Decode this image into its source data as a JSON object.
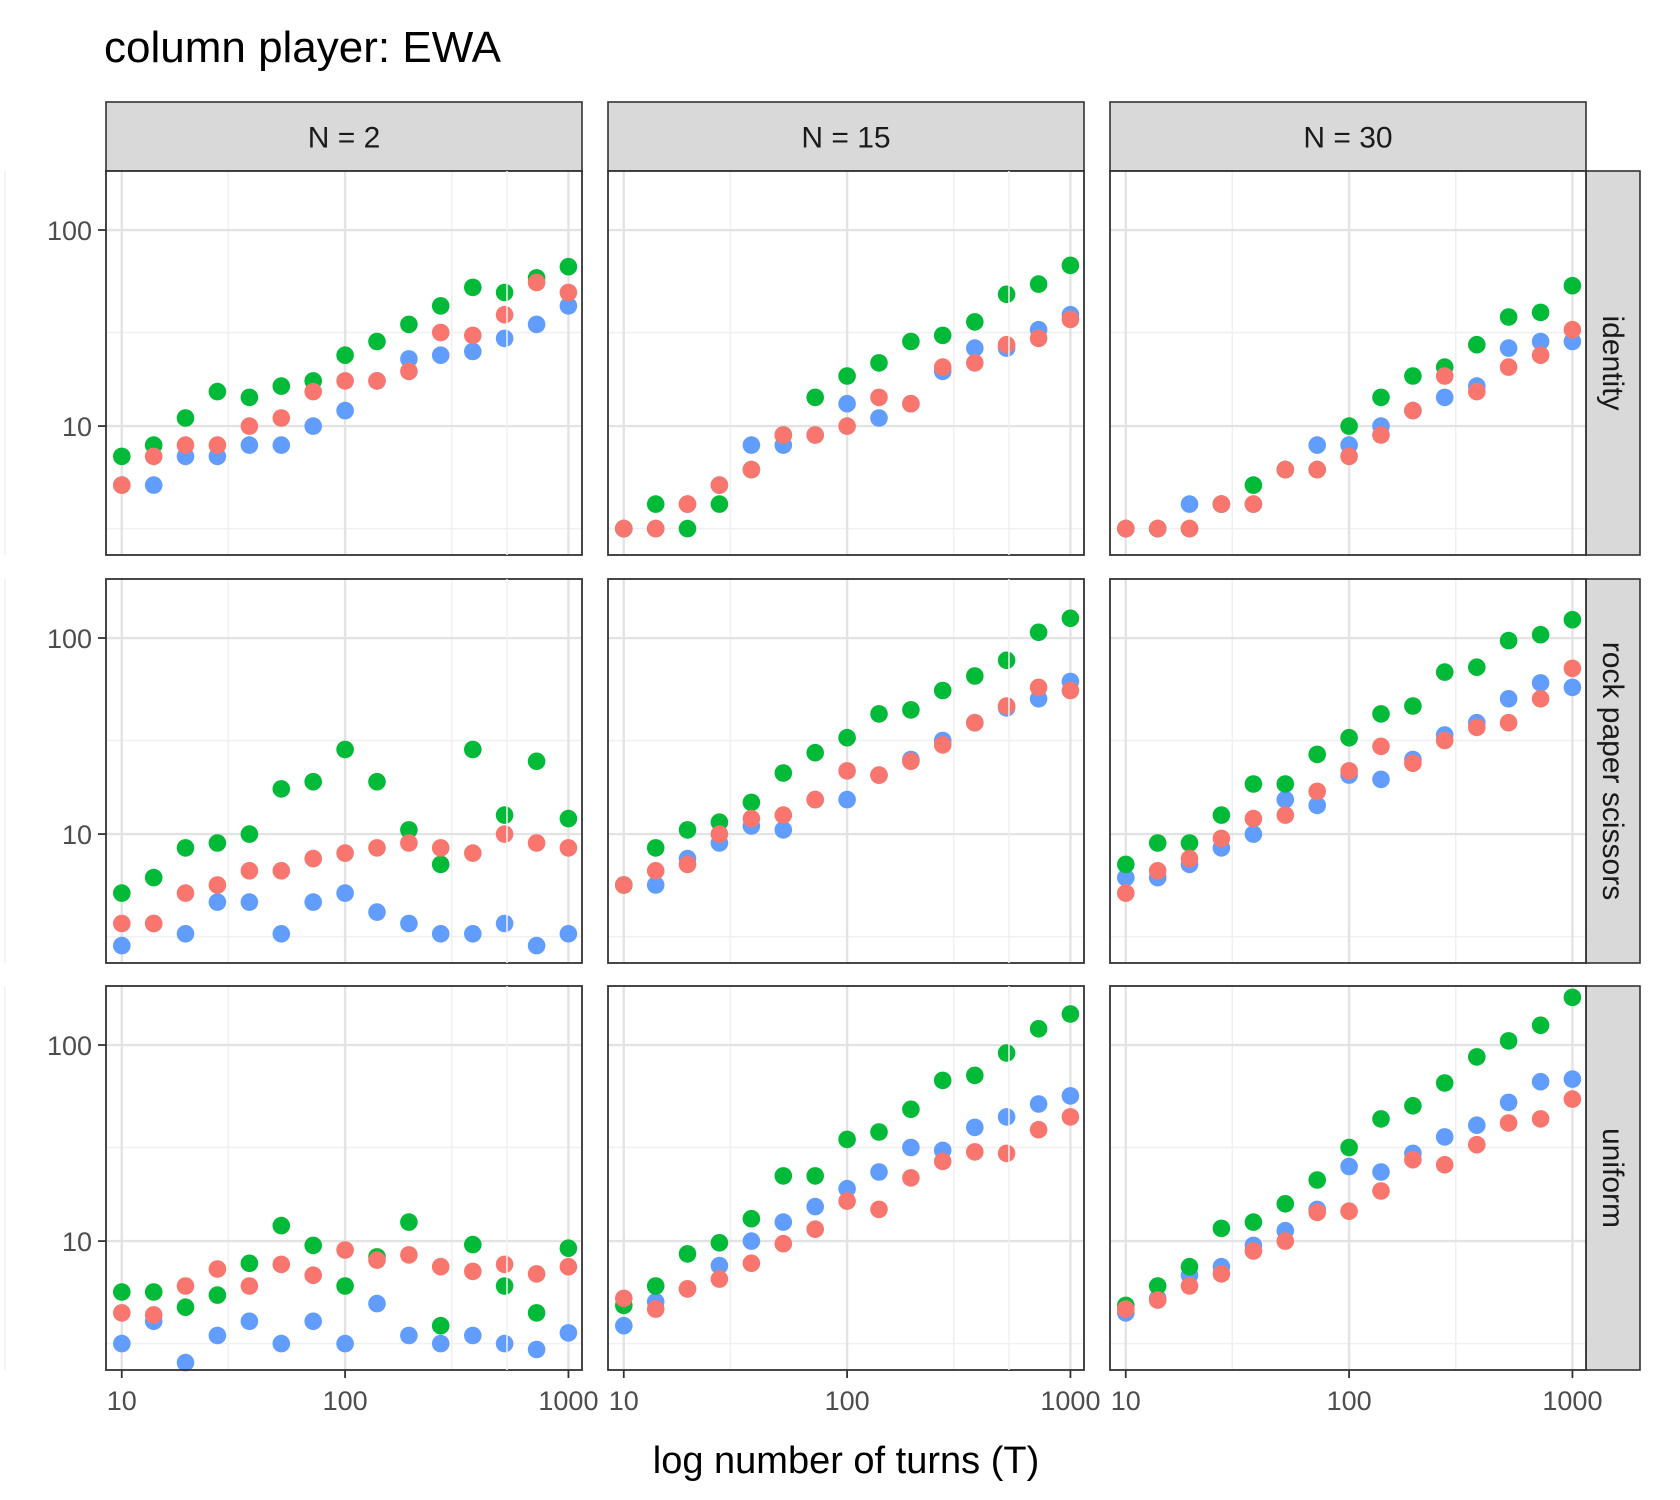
{
  "title": "column player: EWA",
  "chart_data": {
    "type": "scatter",
    "title": "column player: EWA",
    "xlabel": "log number of turns (T)",
    "ylabel": "",
    "x_scale": "log10",
    "y_scale": "log10",
    "xlim": [
      8.5,
      1150
    ],
    "ylim": [
      2.2,
      200
    ],
    "x_ticks": [
      10,
      100,
      1000
    ],
    "x_tick_labels": [
      "10",
      "100",
      "1000"
    ],
    "y_ticks": [
      10,
      100
    ],
    "y_tick_labels": [
      "10",
      "100"
    ],
    "grid": true,
    "legend": "none",
    "columns": [
      "N = 2",
      "N = 15",
      "N = 30"
    ],
    "rows": [
      "identity",
      "rock paper scissors",
      "uniform"
    ],
    "series_colors": {
      "blue": "#619CFF",
      "green": "#00BA38",
      "red": "#F8766D"
    },
    "x": [
      10,
      13.9,
      19.3,
      26.8,
      37.3,
      51.8,
      72,
      100,
      139,
      193,
      268,
      373,
      518,
      720,
      1000
    ],
    "panels": [
      {
        "row": "identity",
        "column": "N = 2",
        "series": [
          {
            "color": "blue",
            "values": [
              5,
              5,
              7,
              7,
              8,
              8,
              10,
              12,
              17,
              22,
              23,
              24,
              28,
              33,
              41
            ]
          },
          {
            "color": "green",
            "values": [
              7,
              8,
              11,
              15,
              14,
              16,
              17,
              23,
              27,
              33,
              41,
              51,
              48,
              57,
              65
            ]
          },
          {
            "color": "red",
            "values": [
              5,
              7,
              8,
              8,
              10,
              11,
              15,
              17,
              17,
              19,
              30,
              29,
              37,
              54,
              48
            ]
          }
        ]
      },
      {
        "row": "identity",
        "column": "N = 15",
        "series": [
          {
            "color": "blue",
            "values": [
              3,
              3,
              4,
              5,
              8,
              8,
              9,
              13,
              11,
              13,
              19,
              25,
              25,
              31,
              37
            ]
          },
          {
            "color": "green",
            "values": [
              3,
              4,
              3,
              4,
              6,
              9,
              14,
              18,
              21,
              27,
              29,
              34,
              47,
              53,
              66
            ]
          },
          {
            "color": "red",
            "values": [
              3,
              3,
              4,
              5,
              6,
              9,
              9,
              10,
              14,
              13,
              20,
              21,
              26,
              28,
              35
            ]
          }
        ]
      },
      {
        "row": "identity",
        "column": "N = 30",
        "series": [
          {
            "color": "blue",
            "values": [
              3,
              3,
              4,
              4,
              4,
              6,
              8,
              8,
              10,
              12,
              14,
              16,
              25,
              27,
              27
            ]
          },
          {
            "color": "green",
            "values": [
              3,
              3,
              3,
              4,
              5,
              6,
              6,
              10,
              14,
              18,
              20,
              26,
              36,
              38,
              52
            ]
          },
          {
            "color": "red",
            "values": [
              3,
              3,
              3,
              4,
              4,
              6,
              6,
              7,
              9,
              12,
              18,
              15,
              20,
              23,
              31
            ]
          }
        ]
      },
      {
        "row": "rock paper scissors",
        "column": "N = 2",
        "series": [
          {
            "color": "blue",
            "values": [
              2.7,
              3.5,
              3.1,
              4.5,
              4.5,
              3.1,
              4.5,
              5,
              4,
              3.5,
              3.1,
              3.1,
              3.5,
              2.7,
              3.1
            ]
          },
          {
            "color": "green",
            "values": [
              5,
              6,
              8.5,
              9,
              10,
              17,
              18.5,
              27,
              18.5,
              10.5,
              7,
              27,
              12.5,
              23.5,
              12
            ]
          },
          {
            "color": "red",
            "values": [
              3.5,
              3.5,
              5,
              5.5,
              6.5,
              6.5,
              7.5,
              8,
              8.5,
              9,
              8.5,
              8,
              10,
              9,
              8.5
            ]
          }
        ]
      },
      {
        "row": "rock paper scissors",
        "column": "N = 15",
        "series": [
          {
            "color": "blue",
            "values": [
              5.5,
              5.5,
              7.5,
              9,
              11,
              10.5,
              15,
              15,
              20,
              24,
              30,
              37,
              44,
              49,
              60
            ]
          },
          {
            "color": "green",
            "values": [
              5.5,
              8.5,
              10.5,
              11.5,
              14.5,
              20.5,
              26,
              31,
              41,
              43,
              54,
              64,
              77,
              107,
              126
            ]
          },
          {
            "color": "red",
            "values": [
              5.5,
              6.5,
              7,
              10,
              12,
              12.5,
              15,
              21,
              20,
              23.5,
              28.5,
              37,
              45,
              56,
              54
            ]
          }
        ]
      },
      {
        "row": "rock paper scissors",
        "column": "N = 30",
        "series": [
          {
            "color": "blue",
            "values": [
              6,
              6,
              7,
              8.5,
              10,
              15,
              14,
              20,
              19,
              24,
              32,
              37,
              49,
              59,
              56
            ]
          },
          {
            "color": "green",
            "values": [
              7,
              9,
              9,
              12.5,
              18,
              18,
              25.5,
              31,
              41,
              45,
              67,
              71,
              97,
              104,
              124
            ]
          },
          {
            "color": "red",
            "values": [
              5,
              6.5,
              7.5,
              9.5,
              12,
              12.5,
              16.5,
              21,
              28,
              23,
              30,
              35,
              37,
              49,
              70
            ]
          }
        ]
      },
      {
        "row": "uniform",
        "column": "N = 2",
        "series": [
          {
            "color": "blue",
            "values": [
              3,
              3.9,
              2.4,
              3.3,
              3.9,
              3,
              3.9,
              3,
              4.8,
              3.3,
              3,
              3.3,
              3,
              2.8,
              3.4
            ]
          },
          {
            "color": "green",
            "values": [
              5.5,
              5.5,
              4.6,
              5.3,
              7.7,
              12,
              9.5,
              5.9,
              8.3,
              12.5,
              3.7,
              9.6,
              5.9,
              4.3,
              9.2
            ]
          },
          {
            "color": "red",
            "values": [
              4.3,
              4.2,
              5.9,
              7.2,
              5.9,
              7.6,
              6.7,
              9,
              8,
              8.5,
              7.4,
              7,
              7.6,
              6.8,
              7.4
            ]
          }
        ]
      },
      {
        "row": "uniform",
        "column": "N = 15",
        "series": [
          {
            "color": "blue",
            "values": [
              3.7,
              4.9,
              5.7,
              7.5,
              10,
              12.5,
              15,
              18.5,
              22.5,
              30,
              29,
              38,
              43,
              50,
              55
            ]
          },
          {
            "color": "green",
            "values": [
              4.7,
              5.9,
              8.6,
              9.8,
              13,
              21.5,
              21.5,
              33,
              36,
              47,
              66,
              70,
              91,
              121,
              144
            ]
          },
          {
            "color": "red",
            "values": [
              5.1,
              4.5,
              5.7,
              6.4,
              7.7,
              9.7,
              11.5,
              16,
              14.5,
              21,
              25.5,
              28.5,
              28,
              37,
              43
            ]
          }
        ]
      },
      {
        "row": "uniform",
        "column": "N = 30",
        "series": [
          {
            "color": "blue",
            "values": [
              4.3,
              5.1,
              6.7,
              7.4,
              9.5,
              11.3,
              14.5,
              24,
              22.5,
              28,
              34,
              39,
              51,
              65,
              67
            ]
          },
          {
            "color": "green",
            "values": [
              4.7,
              5.9,
              7.4,
              11.6,
              12.5,
              15.5,
              20.5,
              30,
              42,
              49,
              64,
              87,
              105,
              126,
              175
            ]
          },
          {
            "color": "red",
            "values": [
              4.5,
              5,
              5.9,
              6.8,
              8.9,
              10,
              14,
              14.2,
              18,
              26,
              24.5,
              31,
              40,
              42,
              53
            ]
          }
        ]
      }
    ]
  }
}
